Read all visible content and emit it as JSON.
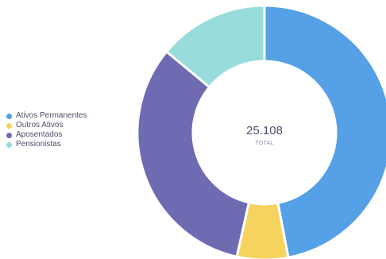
{
  "chart_data": {
    "type": "pie",
    "donut": true,
    "total_value": "25.108",
    "total_label": "TOTAL",
    "legend_position": "left",
    "slices": [
      {
        "name": "Ativos Permanentes",
        "value": 47,
        "color": "#55a0e6"
      },
      {
        "name": "Outros Ativos",
        "value": 6.5,
        "color": "#f5d35e"
      },
      {
        "name": "Aposentados",
        "value": 32.5,
        "color": "#6e6bb2"
      },
      {
        "name": "Pensionistas",
        "value": 14,
        "color": "#98dcdc"
      }
    ]
  }
}
